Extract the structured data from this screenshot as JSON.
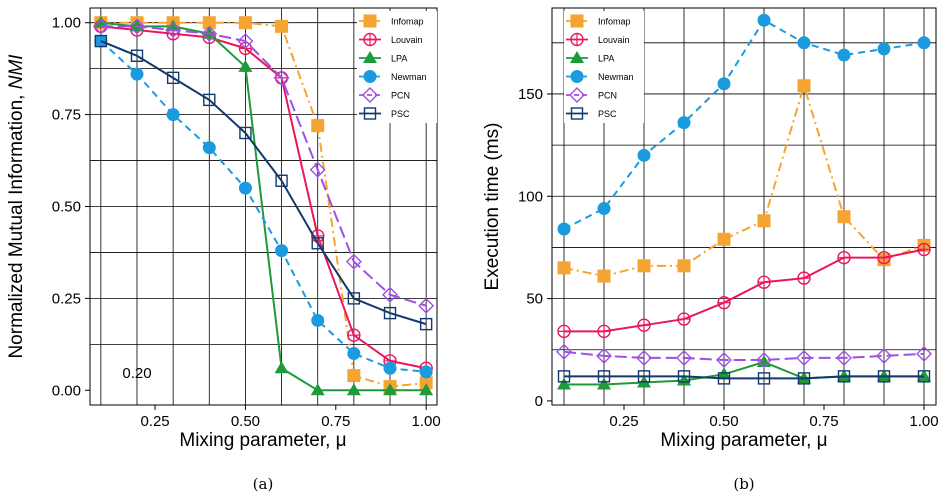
{
  "colors": {
    "Infomap": "#f5a431",
    "Louvain": "#e8185d",
    "LPA": "#1f9a3a",
    "Newman": "#1a9be0",
    "PCN": "#a14ee8",
    "PSC": "#12386e"
  },
  "chart_data": [
    {
      "type": "line",
      "caption": "(a)",
      "xlabel": "Mixing parameter,  μ",
      "ylabel": "Normalized Mutual Information,",
      "ylabel_italic": "NMI",
      "xlim": [
        0.07,
        1.03
      ],
      "ylim": [
        -0.04,
        1.04
      ],
      "xticks": [
        0.25,
        0.5,
        0.75,
        1.0
      ],
      "xtick_labels": [
        "0.25",
        "0.50",
        "0.75",
        "1.00"
      ],
      "yticks": [
        0.0,
        0.25,
        0.5,
        0.75,
        1.0
      ],
      "ytick_labels": [
        "0.00",
        "0.25",
        "0.50",
        "0.75",
        "1.00"
      ],
      "extra_xtick_labels": [
        {
          "x": 0.2,
          "label": "0.20"
        }
      ],
      "grid": true,
      "legend": "top-right",
      "x": [
        0.1,
        0.2,
        0.3,
        0.4,
        0.5,
        0.6,
        0.7,
        0.8,
        0.9,
        1.0
      ],
      "series": [
        {
          "name": "Infomap",
          "marker": "square-filled",
          "dash": "dashdot",
          "values": [
            1.0,
            1.0,
            1.0,
            1.0,
            1.0,
            0.99,
            0.72,
            0.04,
            0.01,
            0.02
          ]
        },
        {
          "name": "Louvain",
          "marker": "circle-plus",
          "dash": "solid",
          "values": [
            0.99,
            0.98,
            0.97,
            0.96,
            0.93,
            0.85,
            0.42,
            0.15,
            0.08,
            0.06
          ]
        },
        {
          "name": "LPA",
          "marker": "triangle-filled",
          "dash": "solid",
          "values": [
            1.0,
            0.99,
            0.99,
            0.97,
            0.88,
            0.06,
            0.0,
            0.0,
            0.0,
            0.0
          ]
        },
        {
          "name": "Newman",
          "marker": "circle-filled",
          "dash": "dashed",
          "values": [
            0.95,
            0.86,
            0.75,
            0.66,
            0.55,
            0.38,
            0.19,
            0.1,
            0.06,
            0.05
          ]
        },
        {
          "name": "PCN",
          "marker": "diamond-open",
          "dash": "longdash",
          "values": [
            0.99,
            0.99,
            0.98,
            0.97,
            0.95,
            0.85,
            0.6,
            0.35,
            0.26,
            0.23
          ]
        },
        {
          "name": "PSC",
          "marker": "square-open",
          "dash": "solid",
          "values": [
            0.95,
            0.91,
            0.85,
            0.79,
            0.7,
            0.57,
            0.4,
            0.25,
            0.21,
            0.18
          ]
        }
      ]
    },
    {
      "type": "line",
      "caption": "(b)",
      "xlabel": "Mixing parameter,  μ",
      "ylabel": "Execution time (ms)",
      "xlim": [
        0.07,
        1.03
      ],
      "ylim": [
        -2,
        192
      ],
      "xticks": [
        0.25,
        0.5,
        0.75,
        1.0
      ],
      "xtick_labels": [
        "0.25",
        "0.50",
        "0.75",
        "1.00"
      ],
      "yticks": [
        0,
        50,
        100,
        150
      ],
      "ytick_labels": [
        "0",
        "50",
        "100",
        "150"
      ],
      "grid": true,
      "legend": "top-left",
      "x": [
        0.1,
        0.2,
        0.3,
        0.4,
        0.5,
        0.6,
        0.7,
        0.8,
        0.9,
        1.0
      ],
      "series": [
        {
          "name": "Infomap",
          "marker": "square-filled",
          "dash": "dashdot",
          "values": [
            65,
            61,
            66,
            66,
            79,
            88,
            154,
            90,
            69,
            76
          ]
        },
        {
          "name": "Louvain",
          "marker": "circle-plus",
          "dash": "solid",
          "values": [
            34,
            34,
            37,
            40,
            48,
            58,
            60,
            70,
            70,
            74
          ]
        },
        {
          "name": "LPA",
          "marker": "triangle-filled",
          "dash": "solid",
          "values": [
            8,
            8,
            9,
            10,
            13,
            19,
            11,
            12,
            12,
            12
          ]
        },
        {
          "name": "Newman",
          "marker": "circle-filled",
          "dash": "dashed",
          "values": [
            84,
            94,
            120,
            136,
            155,
            186,
            175,
            169,
            172,
            175
          ]
        },
        {
          "name": "PCN",
          "marker": "diamond-open",
          "dash": "longdash",
          "values": [
            24,
            22,
            21,
            21,
            20,
            20,
            21,
            21,
            22,
            23
          ]
        },
        {
          "name": "PSC",
          "marker": "square-open",
          "dash": "solid",
          "values": [
            12,
            12,
            12,
            12,
            11,
            11,
            11,
            12,
            12,
            12
          ]
        }
      ]
    }
  ]
}
